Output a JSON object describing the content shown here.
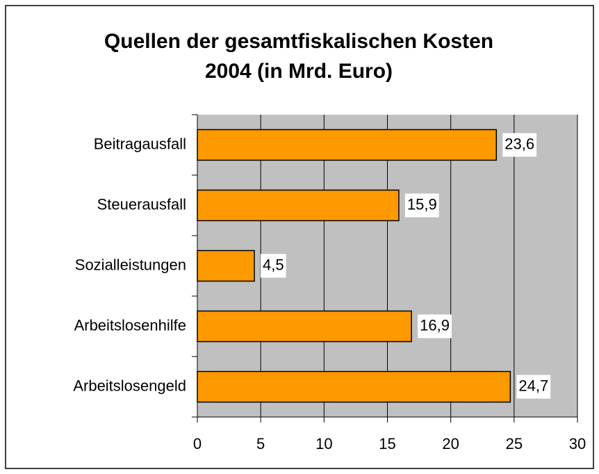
{
  "chart_data": {
    "type": "barh",
    "title": "Quellen der gesamtfiskalischen Kosten 2004 (in Mrd. Euro)",
    "categories": [
      "Beitragausfall",
      "Steuerausfall",
      "Sozialleistungen",
      "Arbeitslosenhilfe",
      "Arbeitslosengeld"
    ],
    "values": [
      23.6,
      15.9,
      4.5,
      16.9,
      24.7
    ],
    "value_labels": [
      "23,6",
      "15,9",
      "4,5",
      "16,9",
      "24,7"
    ],
    "color": "#ff9900",
    "xlim": [
      0,
      30
    ],
    "xticks": [
      0,
      5,
      10,
      15,
      20,
      25,
      30
    ],
    "grid": true
  }
}
